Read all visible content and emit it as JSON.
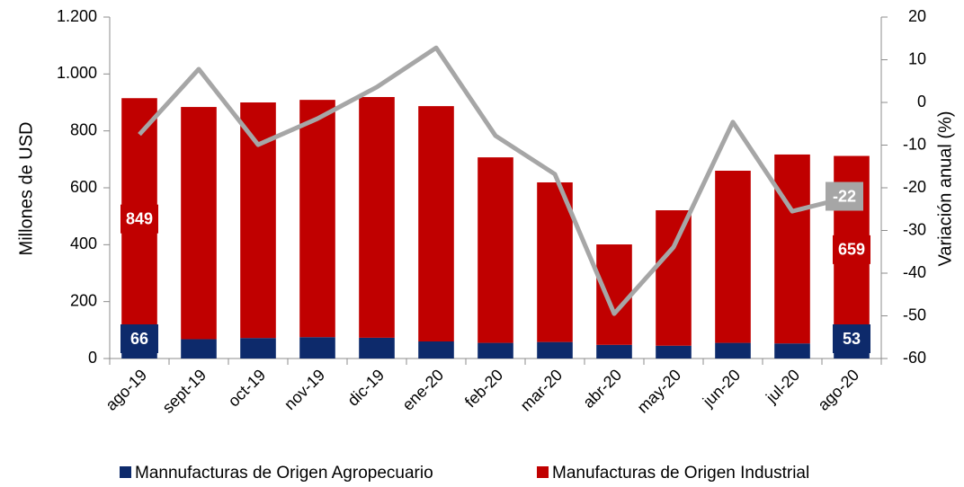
{
  "chart_data": {
    "type": "stacked_bar_line",
    "categories": [
      "ago-19",
      "sept-19",
      "oct-19",
      "nov-19",
      "dic-19",
      "ene-20",
      "feb-20",
      "mar-20",
      "abr-20",
      "may-20",
      "jun-20",
      "jul-20",
      "ago-20"
    ],
    "series": [
      {
        "name": "Mannufacturas de Origen Agropecuario",
        "color": "#0d2a6b",
        "values": [
          66,
          68,
          72,
          75,
          73,
          60,
          55,
          58,
          48,
          45,
          55,
          53,
          53
        ],
        "value_labels": [
          "66",
          null,
          null,
          null,
          null,
          null,
          null,
          null,
          null,
          null,
          null,
          null,
          "53"
        ]
      },
      {
        "name": "Manufacturas de Origen Industrial",
        "color": "#c00000",
        "values": [
          849,
          816,
          828,
          834,
          846,
          827,
          652,
          561,
          353,
          476,
          605,
          664,
          659
        ],
        "value_labels": [
          "849",
          null,
          null,
          null,
          null,
          null,
          null,
          null,
          null,
          null,
          null,
          null,
          "659"
        ]
      }
    ],
    "line_series": {
      "axis": "y2",
      "color": "#a6a6a6",
      "values": [
        -7.5,
        7.8,
        -9.9,
        -3.8,
        3.6,
        12.8,
        -7.8,
        -16.8,
        -49.5,
        -33.9,
        -4.6,
        -25.5,
        -22
      ],
      "value_labels": [
        null,
        null,
        null,
        null,
        null,
        null,
        null,
        null,
        null,
        null,
        null,
        null,
        "-22"
      ]
    },
    "ylabel": "Millones de USD",
    "y2label": "Variación anual (%)",
    "ylim": [
      0,
      1200
    ],
    "yticks": [
      0,
      200,
      400,
      600,
      800,
      {
        "value": 1000,
        "label": "1.000"
      },
      {
        "value": 1200,
        "label": "1.200"
      }
    ],
    "y2lim": [
      -60,
      20
    ],
    "y2ticks": [
      -60,
      -50,
      -40,
      -30,
      -20,
      -10,
      0,
      10,
      20
    ],
    "grid": false,
    "legend": "bottom"
  }
}
